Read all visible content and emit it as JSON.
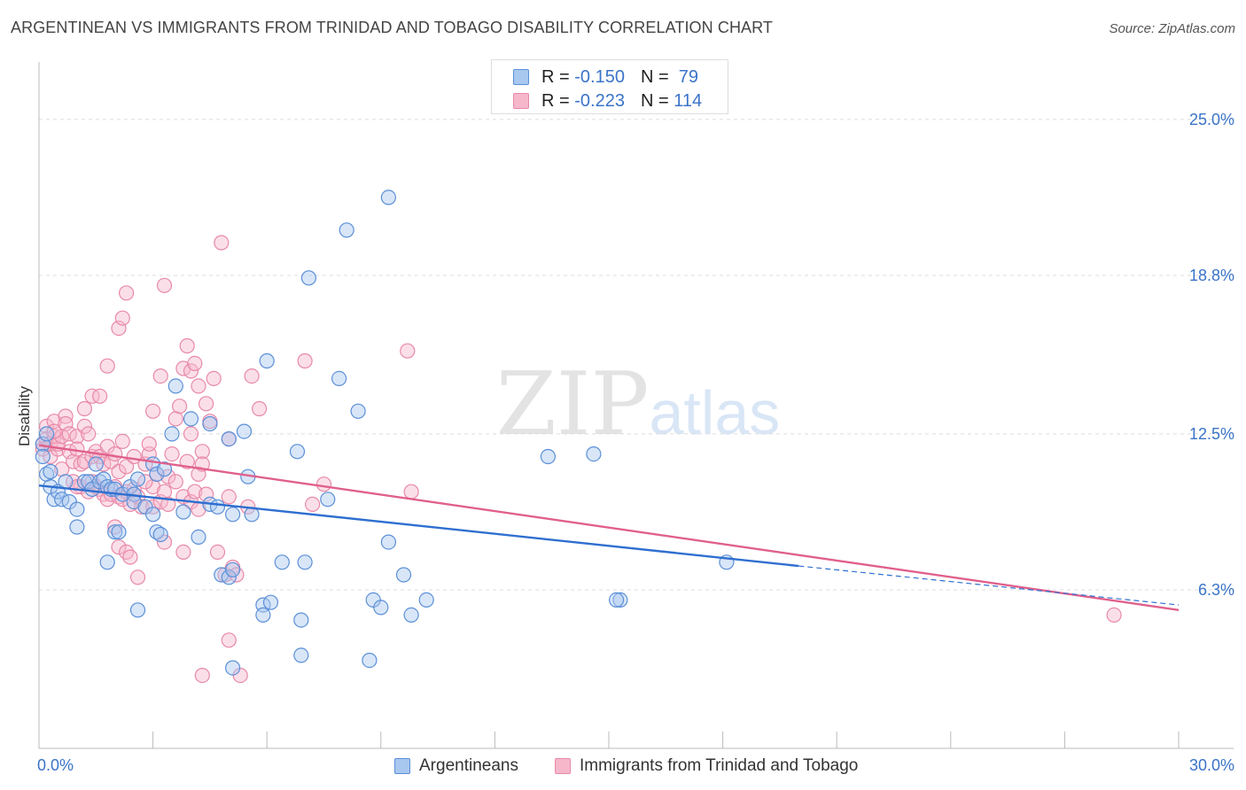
{
  "title": "ARGENTINEAN VS IMMIGRANTS FROM TRINIDAD AND TOBAGO DISABILITY CORRELATION CHART",
  "source": "Source: ZipAtlas.com",
  "colors": {
    "blue_fill": "#a8c8f0",
    "blue_stroke": "#5b8fd8",
    "blue_line": "#2f6fd0",
    "pink_fill": "#f6b7cb",
    "pink_stroke": "#e889a8",
    "pink_line": "#e0608c",
    "value_text": "#3a73c8",
    "grid": "#dcdcdc"
  },
  "stats": {
    "rows": [
      {
        "r_label": "R =",
        "r_value": "-0.150",
        "n_label": "N =",
        "n_value": "79"
      },
      {
        "r_label": "R =",
        "r_value": "-0.223",
        "n_label": "N =",
        "n_value": "114"
      }
    ]
  },
  "legend": {
    "items": [
      {
        "label": "Argentineans"
      },
      {
        "label": "Immigrants from Trinidad and Tobago"
      }
    ]
  },
  "chart_data": {
    "type": "scatter",
    "ylabel": "Disability",
    "xlim": [
      0,
      30
    ],
    "ylim": [
      0,
      27.0
    ],
    "x_tick_labels": [
      "0.0%",
      "30.0%"
    ],
    "y_ticks": [
      25.0,
      18.8,
      12.5,
      6.3
    ],
    "y_tick_labels": [
      "25.0%",
      "18.8%",
      "12.5%",
      "6.3%"
    ],
    "grid": true,
    "watermark": "ZIPatlas",
    "series": [
      {
        "name": "Argentineans",
        "r": -0.15,
        "n": 79,
        "trend": {
          "x0": 0,
          "y0": 10.45,
          "x1": 20.0,
          "y1": 7.25,
          "dash_to_x": 30,
          "dash_to_y": 5.7
        },
        "points": [
          [
            0.1,
            12.1
          ],
          [
            0.1,
            11.6
          ],
          [
            0.2,
            10.9
          ],
          [
            0.2,
            12.5
          ],
          [
            0.3,
            10.4
          ],
          [
            0.3,
            11.0
          ],
          [
            0.4,
            9.9
          ],
          [
            0.5,
            10.2
          ],
          [
            0.6,
            9.9
          ],
          [
            0.7,
            10.6
          ],
          [
            0.8,
            9.8
          ],
          [
            1.0,
            9.5
          ],
          [
            1.0,
            8.8
          ],
          [
            1.2,
            10.6
          ],
          [
            1.3,
            10.6
          ],
          [
            1.4,
            10.3
          ],
          [
            1.5,
            11.3
          ],
          [
            1.6,
            10.6
          ],
          [
            1.7,
            10.7
          ],
          [
            1.8,
            10.4
          ],
          [
            1.9,
            10.3
          ],
          [
            2.0,
            10.3
          ],
          [
            1.8,
            7.4
          ],
          [
            2.0,
            8.6
          ],
          [
            2.1,
            8.6
          ],
          [
            2.2,
            10.1
          ],
          [
            2.4,
            10.4
          ],
          [
            2.5,
            10.1
          ],
          [
            2.5,
            9.8
          ],
          [
            2.6,
            10.7
          ],
          [
            2.6,
            5.5
          ],
          [
            2.8,
            9.6
          ],
          [
            3.0,
            11.3
          ],
          [
            3.0,
            9.3
          ],
          [
            3.1,
            10.9
          ],
          [
            3.1,
            8.6
          ],
          [
            3.2,
            8.5
          ],
          [
            3.3,
            11.1
          ],
          [
            3.5,
            12.5
          ],
          [
            3.6,
            14.4
          ],
          [
            3.8,
            9.4
          ],
          [
            4.0,
            13.1
          ],
          [
            4.2,
            8.4
          ],
          [
            4.5,
            12.9
          ],
          [
            4.5,
            9.7
          ],
          [
            4.7,
            9.6
          ],
          [
            4.8,
            6.9
          ],
          [
            5.0,
            12.3
          ],
          [
            5.0,
            6.8
          ],
          [
            5.1,
            7.1
          ],
          [
            5.1,
            9.3
          ],
          [
            5.4,
            12.6
          ],
          [
            5.5,
            10.8
          ],
          [
            5.6,
            9.3
          ],
          [
            5.9,
            5.7
          ],
          [
            5.9,
            5.3
          ],
          [
            6.0,
            15.4
          ],
          [
            6.1,
            5.8
          ],
          [
            6.4,
            7.4
          ],
          [
            6.8,
            11.8
          ],
          [
            6.9,
            5.1
          ],
          [
            6.9,
            3.7
          ],
          [
            7.0,
            7.4
          ],
          [
            7.1,
            18.7
          ],
          [
            7.6,
            9.9
          ],
          [
            7.9,
            14.7
          ],
          [
            8.1,
            20.6
          ],
          [
            8.4,
            13.4
          ],
          [
            8.7,
            3.5
          ],
          [
            8.8,
            5.9
          ],
          [
            9.0,
            5.6
          ],
          [
            9.2,
            21.9
          ],
          [
            9.2,
            8.2
          ],
          [
            9.6,
            6.9
          ],
          [
            9.8,
            5.3
          ],
          [
            10.2,
            5.9
          ],
          [
            13.4,
            11.6
          ],
          [
            14.6,
            11.7
          ],
          [
            18.1,
            7.4
          ]
        ],
        "extra_points": [
          [
            15.3,
            5.9
          ],
          [
            15.2,
            5.9
          ],
          [
            5.1,
            3.2
          ]
        ]
      },
      {
        "name": "Immigrants from Trinidad and Tobago",
        "r": -0.223,
        "n": 114,
        "trend": {
          "x0": 0,
          "y0": 12.05,
          "x1": 30,
          "y1": 5.5
        },
        "points": [
          [
            0.1,
            12.1
          ],
          [
            0.1,
            11.9
          ],
          [
            0.2,
            12.8
          ],
          [
            0.2,
            12.3
          ],
          [
            0.3,
            11.6
          ],
          [
            0.3,
            12.1
          ],
          [
            0.4,
            13.0
          ],
          [
            0.4,
            12.4
          ],
          [
            0.5,
            11.9
          ],
          [
            0.5,
            12.1
          ],
          [
            0.6,
            12.4
          ],
          [
            0.6,
            11.1
          ],
          [
            0.7,
            13.2
          ],
          [
            0.7,
            12.9
          ],
          [
            0.8,
            12.5
          ],
          [
            0.8,
            11.8
          ],
          [
            0.9,
            11.4
          ],
          [
            0.9,
            10.6
          ],
          [
            1.0,
            12.4
          ],
          [
            1.0,
            11.9
          ],
          [
            1.1,
            11.3
          ],
          [
            1.1,
            10.4
          ],
          [
            1.2,
            12.8
          ],
          [
            1.2,
            11.4
          ],
          [
            1.3,
            12.5
          ],
          [
            1.3,
            10.2
          ],
          [
            1.4,
            11.6
          ],
          [
            1.4,
            10.6
          ],
          [
            1.5,
            11.8
          ],
          [
            1.5,
            10.4
          ],
          [
            1.6,
            11.6
          ],
          [
            1.6,
            10.3
          ],
          [
            1.7,
            11.3
          ],
          [
            1.7,
            10.1
          ],
          [
            1.8,
            12.0
          ],
          [
            1.8,
            9.9
          ],
          [
            1.9,
            11.4
          ],
          [
            1.9,
            10.1
          ],
          [
            2.0,
            11.7
          ],
          [
            2.0,
            10.4
          ],
          [
            2.1,
            11.0
          ],
          [
            2.1,
            10.0
          ],
          [
            2.2,
            12.2
          ],
          [
            2.2,
            9.9
          ],
          [
            2.3,
            11.2
          ],
          [
            2.3,
            10.2
          ],
          [
            2.4,
            9.7
          ],
          [
            2.5,
            10.3
          ],
          [
            2.5,
            11.6
          ],
          [
            2.6,
            10.0
          ],
          [
            2.7,
            9.6
          ],
          [
            2.8,
            11.3
          ],
          [
            2.9,
            11.7
          ],
          [
            3.0,
            10.4
          ],
          [
            3.0,
            9.6
          ],
          [
            3.1,
            10.9
          ],
          [
            3.2,
            9.8
          ],
          [
            3.3,
            10.2
          ],
          [
            3.4,
            10.8
          ],
          [
            3.5,
            11.7
          ],
          [
            3.6,
            10.6
          ],
          [
            3.8,
            10.0
          ],
          [
            3.9,
            11.4
          ],
          [
            4.0,
            12.5
          ],
          [
            4.0,
            9.8
          ],
          [
            4.1,
            10.2
          ],
          [
            4.2,
            10.9
          ],
          [
            4.2,
            9.5
          ],
          [
            4.3,
            11.8
          ],
          [
            4.4,
            10.1
          ],
          [
            1.4,
            14.0
          ],
          [
            1.2,
            13.5
          ],
          [
            1.6,
            14.0
          ],
          [
            2.0,
            8.8
          ],
          [
            2.1,
            8.0
          ],
          [
            2.3,
            7.8
          ],
          [
            2.4,
            7.6
          ],
          [
            2.6,
            6.8
          ],
          [
            2.8,
            10.6
          ],
          [
            2.9,
            12.1
          ],
          [
            3.0,
            13.4
          ],
          [
            3.3,
            8.2
          ],
          [
            3.4,
            9.7
          ],
          [
            3.6,
            13.1
          ],
          [
            3.7,
            13.6
          ],
          [
            3.8,
            15.1
          ],
          [
            3.8,
            7.8
          ],
          [
            3.9,
            16.0
          ],
          [
            4.0,
            15.0
          ],
          [
            4.1,
            15.3
          ],
          [
            4.2,
            14.4
          ],
          [
            4.3,
            11.3
          ],
          [
            4.4,
            13.7
          ],
          [
            4.5,
            13.0
          ],
          [
            4.6,
            14.7
          ],
          [
            4.7,
            7.8
          ],
          [
            4.8,
            20.1
          ],
          [
            4.9,
            6.9
          ],
          [
            5.0,
            12.3
          ],
          [
            5.0,
            10.0
          ],
          [
            5.0,
            4.3
          ],
          [
            5.1,
            7.2
          ],
          [
            5.2,
            6.9
          ],
          [
            5.3,
            2.9
          ],
          [
            5.5,
            9.6
          ],
          [
            5.6,
            14.8
          ],
          [
            5.8,
            13.5
          ],
          [
            7.0,
            15.4
          ],
          [
            7.2,
            9.7
          ],
          [
            7.5,
            10.5
          ],
          [
            9.7,
            15.8
          ],
          [
            9.8,
            10.2
          ],
          [
            28.3,
            5.3
          ],
          [
            3.2,
            14.8
          ]
        ],
        "extra_points": [
          [
            2.1,
            16.7
          ],
          [
            2.2,
            17.1
          ],
          [
            2.3,
            18.1
          ],
          [
            3.3,
            18.4
          ],
          [
            0.4,
            12.6
          ],
          [
            1.8,
            15.2
          ],
          [
            1.0,
            10.4
          ],
          [
            4.3,
            2.9
          ]
        ]
      }
    ]
  }
}
